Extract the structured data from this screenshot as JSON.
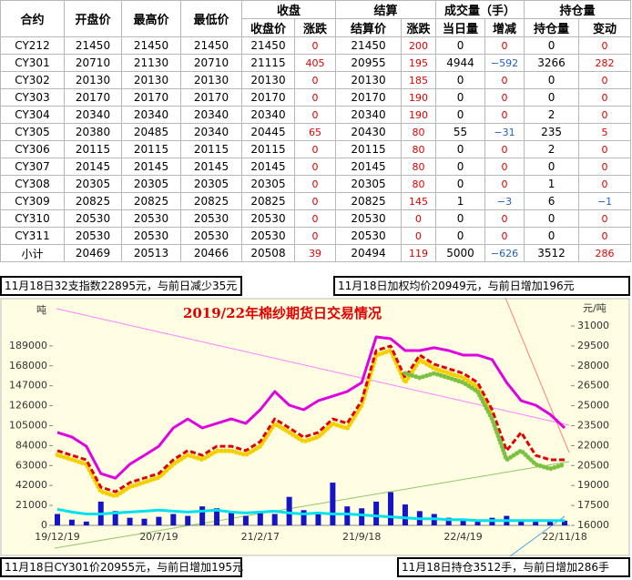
{
  "table": {
    "header_top": [
      "合约",
      "开盘价",
      "最高价",
      "最低价",
      "收盘",
      "结算",
      "成交量（手）",
      "持仓量"
    ],
    "header_sub": [
      "收盘价",
      "涨跌",
      "结算价",
      "涨跌",
      "当日量",
      "增减",
      "持仓量",
      "变动"
    ],
    "rows": [
      [
        "CY212",
        "21450",
        "21450",
        "21450",
        "21450",
        "0",
        "21450",
        "200",
        "0",
        "0",
        "0",
        "0"
      ],
      [
        "CY301",
        "20710",
        "21130",
        "20710",
        "21115",
        "405",
        "20955",
        "195",
        "4944",
        "−592",
        "3266",
        "282"
      ],
      [
        "CY302",
        "20130",
        "20130",
        "20130",
        "20130",
        "0",
        "20130",
        "185",
        "0",
        "0",
        "0",
        "0"
      ],
      [
        "CY303",
        "20170",
        "20170",
        "20170",
        "20170",
        "0",
        "20170",
        "190",
        "0",
        "0",
        "0",
        "0"
      ],
      [
        "CY304",
        "20340",
        "20340",
        "20340",
        "20340",
        "0",
        "20340",
        "190",
        "0",
        "0",
        "2",
        "0"
      ],
      [
        "CY305",
        "20380",
        "20485",
        "20340",
        "20445",
        "65",
        "20430",
        "80",
        "55",
        "−31",
        "235",
        "5"
      ],
      [
        "CY306",
        "20115",
        "20115",
        "20115",
        "20115",
        "0",
        "20115",
        "80",
        "0",
        "0",
        "2",
        "0"
      ],
      [
        "CY307",
        "20145",
        "20145",
        "20145",
        "20145",
        "0",
        "20145",
        "80",
        "0",
        "0",
        "0",
        "0"
      ],
      [
        "CY308",
        "20305",
        "20305",
        "20305",
        "20305",
        "0",
        "20305",
        "80",
        "0",
        "0",
        "1",
        "0"
      ],
      [
        "CY309",
        "20825",
        "20825",
        "20825",
        "20825",
        "0",
        "20825",
        "145",
        "1",
        "−3",
        "6",
        "−1"
      ],
      [
        "CY310",
        "20530",
        "20530",
        "20530",
        "20530",
        "0",
        "20530",
        "0",
        "0",
        "0",
        "0",
        "0"
      ],
      [
        "CY311",
        "20530",
        "20530",
        "20530",
        "20530",
        "0",
        "20530",
        "0",
        "0",
        "0",
        "0",
        "0"
      ],
      [
        "小计",
        "20469",
        "20513",
        "20466",
        "20508",
        "39",
        "20494",
        "119",
        "5000",
        "−626",
        "3512",
        "286"
      ]
    ]
  },
  "notes": [
    "11月18日32支指数22895元，与前日减少35元",
    "11月18日加权均价20949元，与前日增加196元",
    "11月18日CY301价20955元，与前日增加195元",
    "11月18日持仓3512手，与前日增加286手"
  ],
  "chart_data": {
    "type": "combo",
    "title": "2019/22年棉纱期货日交易情况",
    "y_label": "吨",
    "y2_label": "元/吨",
    "categories": [
      "19/12/19",
      null,
      null,
      null,
      null,
      null,
      null,
      "20/7/19",
      null,
      null,
      null,
      null,
      null,
      null,
      "21/2/17",
      null,
      null,
      null,
      null,
      null,
      null,
      "21/9/18",
      null,
      null,
      null,
      null,
      null,
      null,
      "22/4/19",
      null,
      null,
      null,
      null,
      null,
      null,
      "22/11/18"
    ],
    "ylim": [
      0,
      210000
    ],
    "yticks": [
      0,
      21000,
      42000,
      63000,
      84000,
      105000,
      126000,
      147000,
      168000,
      189000
    ],
    "y2lim": [
      16000,
      31000
    ],
    "y2ticks": [
      16000,
      17500,
      19000,
      20500,
      22000,
      23500,
      25000,
      26500,
      28000,
      29500,
      31000
    ],
    "series": [
      {
        "kind": "bar",
        "color": "#1414c8",
        "values": [
          12000,
          6000,
          4000,
          25000,
          15000,
          8000,
          7000,
          9000,
          12000,
          10000,
          20000,
          18000,
          15000,
          10000,
          14000,
          12000,
          30000,
          16000,
          14000,
          45000,
          20000,
          18000,
          25000,
          35000,
          22000,
          15000,
          12000,
          8000,
          6000,
          5000,
          8000,
          10000,
          6000,
          5000,
          4000,
          5000
        ]
      },
      {
        "kind": "line",
        "line_style": "solid",
        "color": "#00e0ee",
        "values": [
          17000,
          14000,
          12000,
          12000,
          13000,
          14000,
          15000,
          16000,
          15000,
          14000,
          15000,
          16000,
          14000,
          13000,
          14000,
          15000,
          13000,
          12000,
          13000,
          12000,
          12000,
          11000,
          10000,
          9000,
          8000,
          7000,
          7000,
          6000,
          6000,
          5000,
          5000,
          5000,
          5000,
          5000,
          5000,
          5000
        ]
      },
      {
        "kind": "line",
        "axis": "y2",
        "line_style": "solid",
        "color": "#e000e0",
        "values": [
          22990,
          22650,
          21950,
          19900,
          19550,
          20600,
          21270,
          21950,
          23330,
          24010,
          23330,
          23670,
          24010,
          23670,
          24700,
          26070,
          25040,
          24700,
          25380,
          25720,
          26070,
          26750,
          30180,
          30040,
          29150,
          29150,
          29360,
          29150,
          28810,
          28810,
          28470,
          26750,
          25380,
          25040,
          24350,
          23330
        ]
      },
      {
        "kind": "line",
        "axis": "y2",
        "line_style": "dotted",
        "color": "#f5d000",
        "values": [
          21300,
          20950,
          20600,
          18550,
          18200,
          18900,
          19250,
          19600,
          20600,
          21300,
          20950,
          21600,
          21600,
          21300,
          21950,
          23650,
          23000,
          22300,
          22650,
          23650,
          23300,
          25050,
          28800,
          29150,
          26750,
          28450,
          27800,
          27450,
          27100,
          26400,
          24350,
          null,
          null,
          null,
          null,
          null
        ]
      },
      {
        "kind": "line",
        "axis": "y2",
        "line_style": "dashed",
        "color": "#e00000",
        "values": [
          21620,
          21270,
          20930,
          18880,
          18530,
          19220,
          19560,
          19900,
          20930,
          21620,
          21270,
          21950,
          21950,
          21620,
          22300,
          24010,
          23330,
          22640,
          22990,
          24010,
          23670,
          25380,
          29150,
          29490,
          27100,
          28810,
          28120,
          27780,
          27440,
          26750,
          24700,
          21620,
          22990,
          21270,
          20930,
          20930
        ]
      },
      {
        "kind": "line",
        "axis": "y2",
        "line_style": "dotted",
        "color": "#7cc142",
        "values": [
          null,
          null,
          null,
          null,
          null,
          null,
          null,
          null,
          null,
          null,
          null,
          null,
          null,
          null,
          null,
          null,
          null,
          null,
          null,
          null,
          null,
          null,
          null,
          null,
          27440,
          27100,
          27440,
          27100,
          26750,
          26070,
          24010,
          20930,
          21620,
          20590,
          20250,
          20590
        ]
      }
    ]
  }
}
